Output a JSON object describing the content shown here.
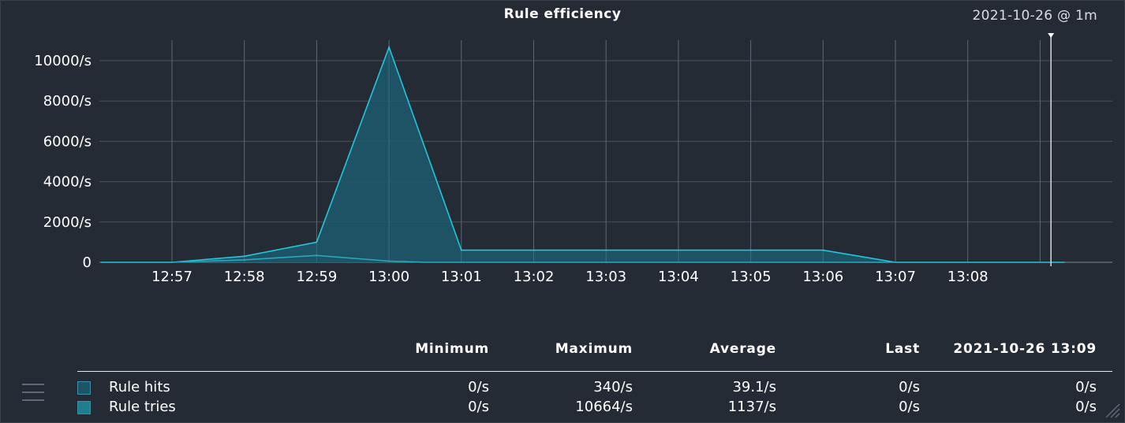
{
  "title": "Rule efficiency",
  "timestamp": "2021-10-26 @ 1m",
  "chart_data": {
    "type": "area",
    "title": "Rule efficiency",
    "x_tick_labels": [
      "12:57",
      "12:58",
      "12:59",
      "13:00",
      "13:01",
      "13:02",
      "13:03",
      "13:04",
      "13:05",
      "13:06",
      "13:07",
      "13:08"
    ],
    "y_tick_labels": [
      "10000/s",
      "8000/s",
      "6000/s",
      "4000/s",
      "2000/s",
      "0"
    ],
    "y_ticks": [
      10000,
      8000,
      6000,
      4000,
      2000,
      0
    ],
    "ylim": [
      0,
      10000
    ],
    "xlim_minutes": [
      -0.98,
      12.34
    ],
    "grid": true,
    "x_grid_minutes": [
      0,
      1,
      2,
      3,
      4,
      5,
      6,
      7,
      8,
      9,
      10,
      11,
      12
    ],
    "now_marker_minutes": 12.15,
    "series": [
      {
        "name": "Rule tries",
        "color": "#1fc7dc",
        "fill": "#1c5b6c",
        "x_minutes": [
          -0.98,
          0,
          1,
          2,
          3,
          4,
          5,
          6,
          7,
          8,
          9,
          9.5,
          10,
          11,
          12,
          12.34
        ],
        "values": [
          0,
          0,
          300,
          1000,
          10664,
          600,
          600,
          600,
          600,
          600,
          600,
          300,
          0,
          0,
          0,
          0
        ]
      },
      {
        "name": "Rule hits",
        "color": "#2ba7bd",
        "fill": "#1b5566",
        "x_minutes": [
          -0.98,
          0,
          1,
          2,
          3,
          3.5,
          4,
          12.34
        ],
        "values": [
          0,
          0,
          120,
          340,
          60,
          0,
          0,
          0
        ]
      }
    ]
  },
  "legend": {
    "headers": {
      "minimum": "Minimum",
      "maximum": "Maximum",
      "average": "Average",
      "last": "Last",
      "date": "2021-10-26 13:09"
    },
    "rows": [
      {
        "label": "Rule hits",
        "color": "#1b5566",
        "minimum": "0/s",
        "maximum": "340/s",
        "average": "39.1/s",
        "last": "0/s",
        "at_date": "0/s"
      },
      {
        "label": "Rule tries",
        "color": "#1e7f91",
        "minimum": "0/s",
        "maximum": "10664/s",
        "average": "1137/s",
        "last": "0/s",
        "at_date": "0/s"
      }
    ]
  },
  "icons": {
    "menu": "menu-icon",
    "resize": "resize-icon"
  }
}
